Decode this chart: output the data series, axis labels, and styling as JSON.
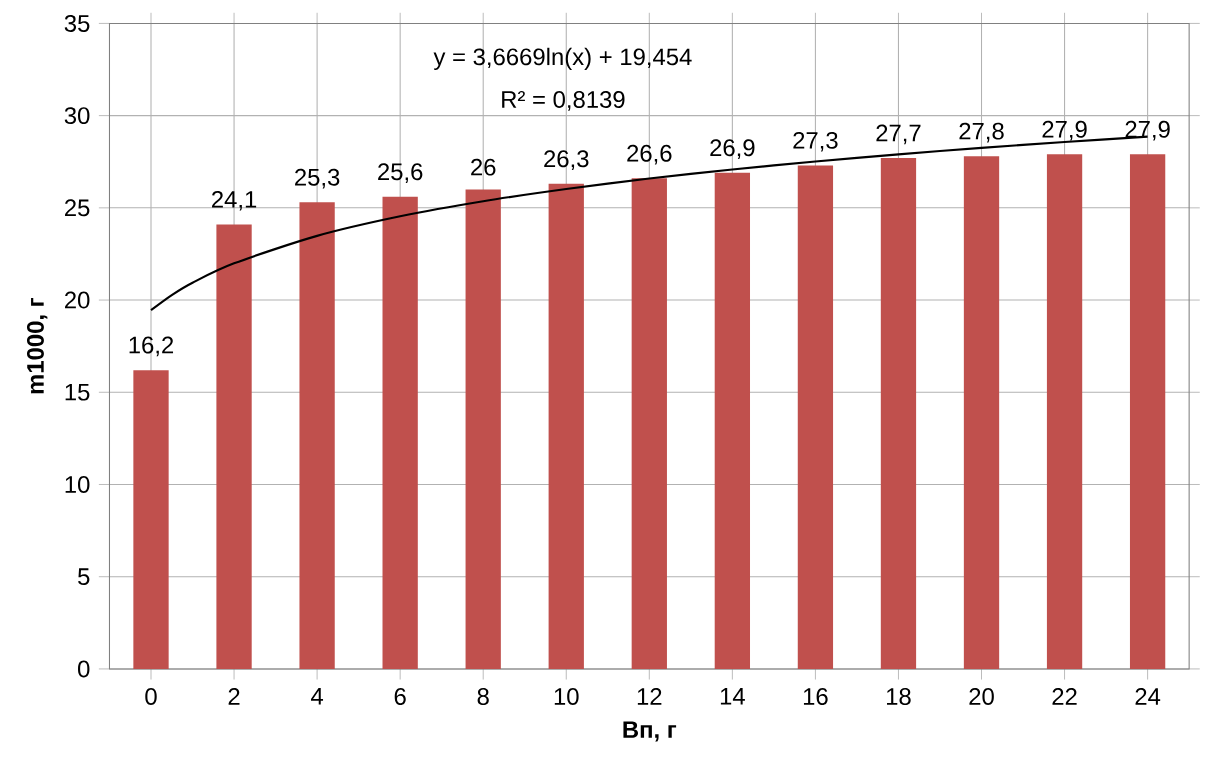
{
  "chart_data": {
    "type": "bar",
    "xlabel": "Вп, г",
    "ylabel": "m1000, г",
    "annotations": [
      "y = 3,6669ln(x) + 19,454",
      "R² = 0,8139"
    ],
    "x": [
      0,
      2,
      4,
      6,
      8,
      10,
      12,
      14,
      16,
      18,
      20,
      22,
      24
    ],
    "xlim": [
      -1,
      25
    ],
    "xticks": [
      0,
      2,
      4,
      6,
      8,
      10,
      12,
      14,
      16,
      18,
      20,
      22,
      24
    ],
    "ylim": [
      0,
      35
    ],
    "yticks": [
      0,
      5,
      10,
      15,
      20,
      25,
      30,
      35
    ],
    "grid": true,
    "series": [
      {
        "color": "#c0504d",
        "values": [
          16.2,
          24.1,
          25.3,
          25.6,
          26,
          26.3,
          26.6,
          26.9,
          27.3,
          27.7,
          27.8,
          27.9,
          27.9
        ],
        "value_labels": [
          "16,2",
          "24,1",
          "25,3",
          "25,6",
          "26",
          "26,3",
          "26,6",
          "26,9",
          "27,3",
          "27,7",
          "27,8",
          "27,9",
          "27,9"
        ]
      },
      {
        "type": "line",
        "color": "#000000",
        "marker": "none",
        "line_style": "solid",
        "x": [
          0,
          0.5,
          1,
          2,
          4,
          6,
          8,
          10,
          12,
          14,
          16,
          18,
          20,
          22,
          24
        ],
        "values": [
          19.45,
          20.27,
          20.94,
          21.99,
          23.48,
          24.54,
          25.36,
          26.02,
          26.59,
          27.08,
          27.51,
          27.9,
          28.25,
          28.57,
          28.86
        ]
      }
    ]
  }
}
